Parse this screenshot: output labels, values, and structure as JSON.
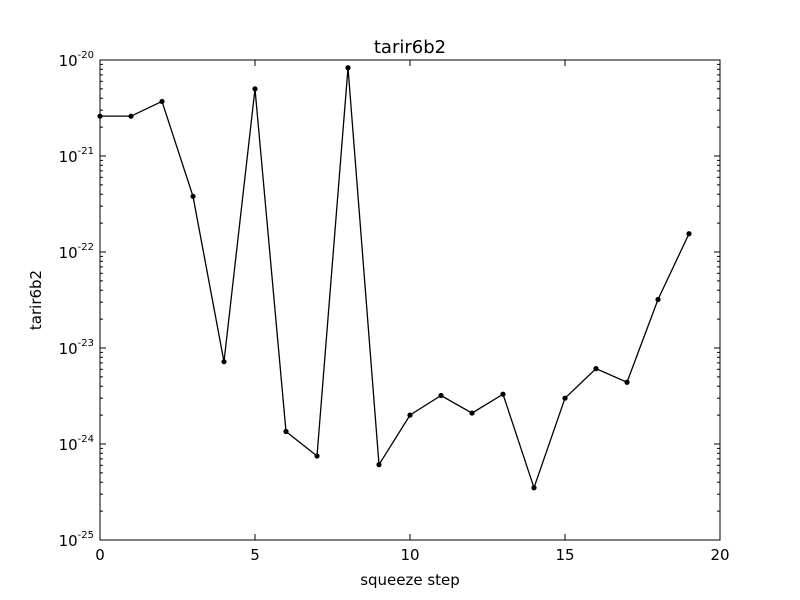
{
  "chart_data": {
    "type": "line",
    "title": "tarir6b2",
    "xlabel": "squeeze step",
    "ylabel": "tarir6b2",
    "xlim": [
      0,
      20
    ],
    "ylim": [
      1e-25,
      1e-20
    ],
    "yscale": "log",
    "grid": false,
    "x_ticks": [
      0,
      5,
      10,
      15,
      20
    ],
    "y_ticks": [
      {
        "value": 1e-25,
        "base": "10",
        "exp": "-25"
      },
      {
        "value": 1e-24,
        "base": "10",
        "exp": "-24"
      },
      {
        "value": 1e-23,
        "base": "10",
        "exp": "-23"
      },
      {
        "value": 1e-22,
        "base": "10",
        "exp": "-22"
      },
      {
        "value": 1e-21,
        "base": "10",
        "exp": "-21"
      },
      {
        "value": 1e-20,
        "base": "10",
        "exp": "-20"
      }
    ],
    "series": [
      {
        "color": "#000000",
        "marker": "dot",
        "x": [
          0,
          1,
          2,
          3,
          4,
          5,
          6,
          7,
          8,
          9,
          10,
          11,
          12,
          13,
          14,
          15,
          16,
          17,
          18,
          19
        ],
        "y": [
          2.6e-21,
          2.6e-21,
          3.7e-21,
          3.8e-22,
          7.2e-24,
          5e-21,
          1.35e-24,
          7.5e-25,
          8.3e-21,
          6.1e-25,
          2e-24,
          3.2e-24,
          2.1e-24,
          3.3e-24,
          3.5e-25,
          3e-24,
          6.1e-24,
          4.4e-24,
          3.2e-23,
          1.55e-22
        ]
      }
    ]
  }
}
